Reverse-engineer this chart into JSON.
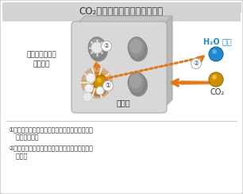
{
  "title": "CO₂除去メカニズムイメージ図",
  "bg_color": "#f2f2f2",
  "inner_bg": "#ffffff",
  "border_color": "#c8c8c8",
  "title_bg": "#d4d4d4",
  "block_front": "#d8d8d8",
  "block_top": "#c4c4c4",
  "block_right": "#b8b8b8",
  "hole_dark": "#909090",
  "hole_light": "#a0a0a0",
  "orange_color": "#e07818",
  "gold_color": "#cc9000",
  "blue_color": "#2288cc",
  "text_color": "#333333",
  "label_shokkabai": "消石灰",
  "label_tansan": "炭酸カルシウム\nへと変化",
  "label_H2O": "H₂O 蔭発",
  "label_CO2": "CO₂",
  "text1_line1": "①二酸化炭素と水酸化カルシウムが化学反応し生",
  "text1_line2": "    成点が発生。",
  "text2_line1": "②生成点により水分が蒸発し、炭酸カルシウムと",
  "text2_line2": "    なる。"
}
